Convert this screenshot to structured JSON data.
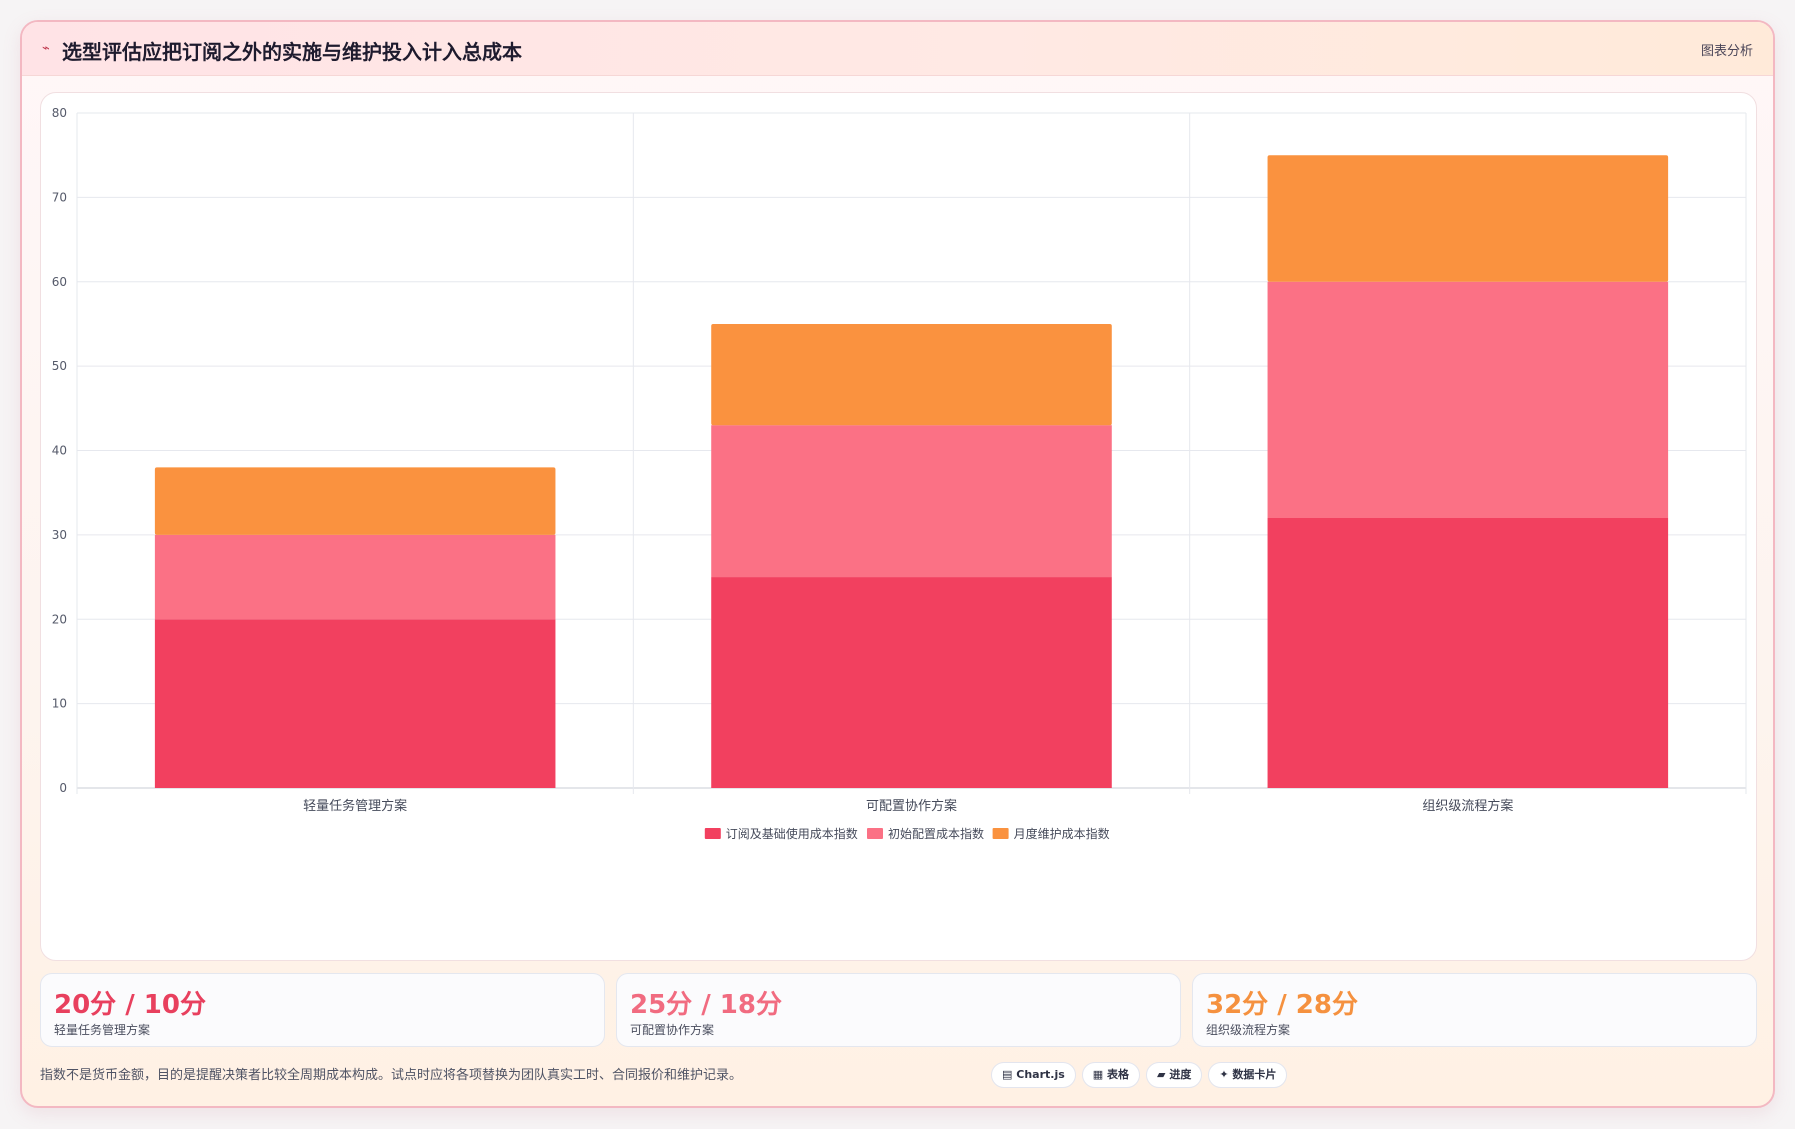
{
  "header": {
    "icon": "chart-line-icon",
    "title": "选型评估应把订阅之外的实施与维护投入计入总成本",
    "tag": "图表分析"
  },
  "chart_data": {
    "type": "bar",
    "stacked": true,
    "categories": [
      "轻量任务管理方案",
      "可配置协作方案",
      "组织级流程方案"
    ],
    "series": [
      {
        "name": "订阅及基础使用成本指数",
        "values": [
          20,
          25,
          32
        ],
        "color": "#f2405f"
      },
      {
        "name": "初始配置成本指数",
        "values": [
          10,
          18,
          28
        ],
        "color": "#fb7185"
      },
      {
        "name": "月度维护成本指数",
        "values": [
          8,
          12,
          15
        ],
        "color": "#fa923f"
      }
    ],
    "ylim": [
      0,
      80
    ],
    "yticks": [
      0,
      10,
      20,
      30,
      40,
      50,
      60,
      70,
      80
    ],
    "grid": true,
    "legend": "bottom-center"
  },
  "stats": [
    {
      "value": "20分 / 10分",
      "label": "轻量任务管理方案",
      "color": "#e8405e"
    },
    {
      "value": "25分 / 18分",
      "label": "可配置协作方案",
      "color": "#f16b80"
    },
    {
      "value": "32分 / 28分",
      "label": "组织级流程方案",
      "color": "#f5913f"
    }
  ],
  "footnote": "指数不是货币金额，目的是提醒决策者比较全周期成本构成。试点时应将各项替换为团队真实工时、合同报价和维护记录。",
  "chips": [
    {
      "icon": "chart-icon",
      "glyph": "▤",
      "label": "Chart.js"
    },
    {
      "icon": "table-icon",
      "glyph": "▦",
      "label": "表格"
    },
    {
      "icon": "progress-icon",
      "glyph": "▰",
      "label": "进度"
    },
    {
      "icon": "sparkle-icon",
      "glyph": "✦",
      "label": "数据卡片"
    }
  ]
}
